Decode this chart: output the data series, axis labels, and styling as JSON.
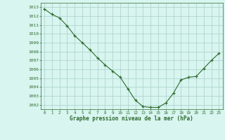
{
  "x": [
    0,
    1,
    2,
    3,
    4,
    5,
    6,
    7,
    8,
    9,
    10,
    11,
    12,
    13,
    14,
    15,
    16,
    17,
    18,
    19,
    20,
    21,
    22,
    23
  ],
  "y": [
    1012.8,
    1012.2,
    1011.8,
    1010.9,
    1009.8,
    1009.0,
    1008.2,
    1007.3,
    1006.5,
    1005.8,
    1005.1,
    1003.8,
    1002.5,
    1001.8,
    1001.7,
    1001.7,
    1002.2,
    1003.3,
    1004.8,
    1005.1,
    1005.2,
    1006.1,
    1007.0,
    1007.8
  ],
  "line_color": "#2d6a2d",
  "marker_color": "#2d6a2d",
  "bg_color": "#d8f5f0",
  "grid_color": "#aacfc8",
  "label_color": "#2d6a2d",
  "ylabel_ticks": [
    1002,
    1003,
    1004,
    1005,
    1006,
    1007,
    1008,
    1009,
    1010,
    1011,
    1012,
    1013
  ],
  "xlabel": "Graphe pression niveau de la mer (hPa)",
  "ylim": [
    1001.5,
    1013.5
  ],
  "xlim": [
    -0.5,
    23.5
  ]
}
